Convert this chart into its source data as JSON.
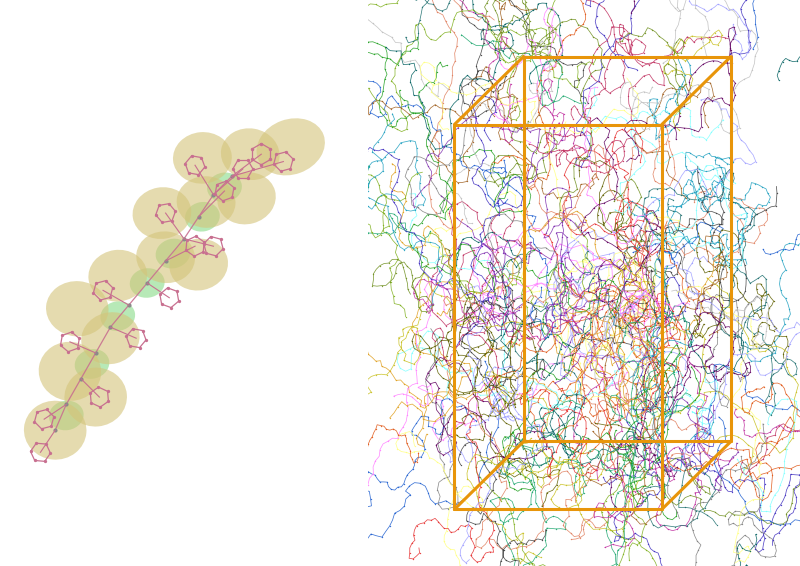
{
  "figure_width": 8.0,
  "figure_height": 5.66,
  "dpi": 100,
  "bg_color": "#ffffff",
  "tan_color": "#d4c47a",
  "tan_alpha": 0.6,
  "green_color": "#7dd87d",
  "green_alpha": 0.55,
  "pink_color": "#c87090",
  "gray_color": "#8a8a8a",
  "box_color": "#e8950a"
}
